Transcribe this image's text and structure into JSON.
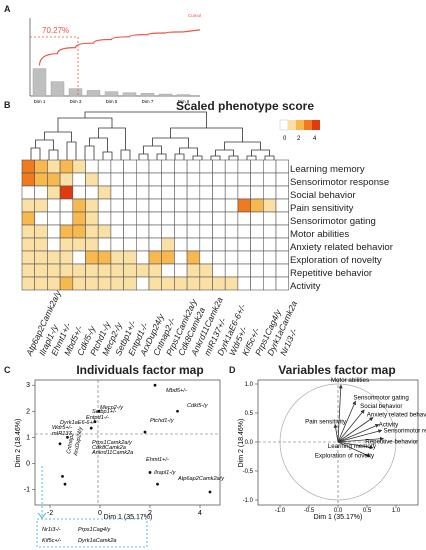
{
  "panelA": {
    "letter": "A",
    "annotation": "70.27%",
    "curve_label": "Cumul",
    "chart_data": {
      "type": "bar",
      "categories": [
        "Dim 1",
        "",
        "Dim 3",
        "",
        "Dim 5",
        "",
        "Dim 7",
        "",
        "Dim 9"
      ],
      "values": [
        35.17,
        18.46,
        9.5,
        7.14,
        5.6,
        4.2,
        3.4,
        2.5,
        1.8
      ],
      "xlabel": "",
      "ylabel": ""
    }
  },
  "panelB": {
    "letter": "B",
    "title": "Scaled phenotype score",
    "legend": {
      "ticks": [
        "0",
        "2",
        "4"
      ],
      "colors": [
        "#ffffff",
        "#fbe0a6",
        "#f6b84f",
        "#ef7a1f",
        "#e03b10"
      ]
    },
    "traits": [
      "Learning memory",
      "Sensorimotor response",
      "Social behavior",
      "Pain sensitivity",
      "Sensorimotor gating",
      "Motor abilities",
      "Anxiety related behavior",
      "Exploration of novelty",
      "Repetitive behavior",
      "Activity"
    ],
    "genes": [
      "Atp6ap2Camk2a/y",
      "Ilrapl1-/y",
      "Ehmt1+/-",
      "Mbd5+/-",
      "Cdkl5-/y",
      "Ptchd1-/y",
      "Mecp2-/y",
      "Setbp1+/-",
      "Entpd1-/-",
      "ArxDup24/y",
      "Cntnap2-/-",
      "Prps1Camk2a/y",
      "Cdk8Camk2a",
      "Ankrd11Camk2a",
      "mIR137+/-",
      "Dyrk1aE6-6+/-",
      "Wdr5+/-",
      "Kif5c+/-",
      "Prps1Cag4/y",
      "Dyrk1aCamk2a",
      "Nr1i3-/-"
    ],
    "chart_data": {
      "type": "heatmap",
      "rows": [
        "Learning memory",
        "Sensorimotor response",
        "Social behavior",
        "Pain sensitivity",
        "Sensorimotor gating",
        "Motor abilities",
        "Anxiety related behavior",
        "Exploration of novelty",
        "Repetitive behavior",
        "Activity"
      ],
      "columns": [
        "Atp6ap2",
        "Ilrapl1",
        "Ehmt1",
        "Mbd5",
        "Cdkl5",
        "Ptchd1",
        "Mecp2",
        "Setbp1",
        "Entpd1",
        "Arx",
        "Cntnap2",
        "Prps1Camk2a",
        "Cdk8",
        "Ankrd11",
        "mIR137",
        "Dyrk1aE6",
        "Wdr5",
        "Kif5c",
        "Prps1Cag",
        "Dyrk1aCamk2a",
        "Nr1i3"
      ],
      "values": [
        [
          3,
          2,
          1,
          2,
          1,
          0,
          0,
          0,
          0,
          0,
          0,
          0,
          0,
          0,
          0,
          0,
          0,
          0,
          0,
          0,
          0
        ],
        [
          3,
          2,
          2,
          1,
          0,
          1,
          0,
          0,
          0,
          0,
          0,
          0,
          0,
          0,
          0,
          0,
          0,
          0,
          0,
          0,
          0
        ],
        [
          0,
          0,
          1,
          4,
          0,
          0,
          1,
          0,
          0,
          0,
          0,
          0,
          0,
          0,
          0,
          0,
          0,
          0,
          0,
          0,
          0
        ],
        [
          1,
          1,
          0,
          0,
          2,
          1,
          0,
          0,
          0,
          0,
          0,
          0,
          0,
          0,
          0,
          0,
          0,
          3,
          2,
          1,
          0
        ],
        [
          2,
          0,
          0,
          0,
          2,
          1,
          0,
          0,
          0,
          0,
          0,
          0,
          0,
          0,
          0,
          0,
          0,
          0,
          0,
          0,
          0
        ],
        [
          1,
          1,
          0,
          2,
          2,
          1,
          1,
          0,
          0,
          0,
          0,
          0,
          0,
          0,
          0,
          0,
          0,
          0,
          0,
          0,
          0
        ],
        [
          1,
          1,
          0,
          1,
          1,
          1,
          0,
          0,
          0,
          0,
          0,
          1,
          0,
          0,
          0,
          0,
          0,
          0,
          0,
          0,
          0
        ],
        [
          1,
          1,
          1,
          1,
          0,
          2,
          2,
          1,
          1,
          0,
          2,
          2,
          0,
          2,
          0,
          0,
          0,
          0,
          0,
          0,
          0
        ],
        [
          1,
          1,
          1,
          1,
          1,
          1,
          1,
          1,
          1,
          1,
          1,
          0,
          0,
          1,
          1,
          0,
          0,
          0,
          0,
          0,
          0
        ],
        [
          1,
          1,
          1,
          2,
          1,
          1,
          1,
          1,
          1,
          0,
          1,
          1,
          1,
          1,
          1,
          1,
          1,
          0,
          0,
          0,
          0
        ]
      ]
    }
  },
  "panelC": {
    "letter": "C",
    "title": "Individuals factor map",
    "xlabel": "Dim 1 (35.17%)",
    "ylabel": "Dim 2 (18.46%)",
    "xticks": [
      "-2",
      "0",
      "2",
      "4"
    ],
    "yticks": [
      "-1",
      "0",
      "1",
      "2",
      "3"
    ],
    "chart_data": {
      "type": "scatter",
      "xlim": [
        -2.6,
        4.8
      ],
      "ylim": [
        -1.6,
        3.2
      ],
      "points": [
        {
          "label": "Mbd5+/-",
          "x": 2.2,
          "y": 3.0
        },
        {
          "label": "Cdkl5-/y",
          "x": 3.1,
          "y": 2.0
        },
        {
          "label": "Mecp2-/y",
          "x": -0.05,
          "y": 2.0
        },
        {
          "label": "Setbp1+/-",
          "x": -0.2,
          "y": 1.6
        },
        {
          "label": "Entpd1-/-",
          "x": -0.35,
          "y": 1.35
        },
        {
          "label": "Ptchd1-/y",
          "x": 1.8,
          "y": 1.2
        },
        {
          "label": "Wdr5+/-",
          "x": -1.3,
          "y": 1.0
        },
        {
          "label": "mIR137",
          "x": -1.6,
          "y": 0.75
        },
        {
          "label": "Ehmt1+/-",
          "x": 2.0,
          "y": -0.35
        },
        {
          "label": "Ilrapl1-/y",
          "x": 2.3,
          "y": -0.8
        },
        {
          "label": "Atp6ap2Camk2a/y",
          "x": 4.4,
          "y": -1.1
        },
        {
          "label": "Cntnap2",
          "x": -1.5,
          "y": -0.5
        },
        {
          "label": "ArxDup24/y",
          "x": -1.4,
          "y": -0.8
        }
      ]
    },
    "labels": {
      "mbd5": "Mbd5+/-",
      "cdkl5": "Cdkl5-/y",
      "mecp2": "Mecp2-/y",
      "setbp1": "Setbp1+/-",
      "entpd1": "Entpd1-/-",
      "ptchd1": "Ptchd1-/y",
      "wdr5": "Wdr5+/-",
      "dyrk1a": "Dyrk1aE6-6+/-",
      "mir137": "mIR137",
      "cntnap2": "Cntnap2",
      "arx": "ArxDup24/y",
      "prps1": "Prps1Camk2a/y",
      "cdk8": "Cdk8Camk2a",
      "ankrd11": "Ankrd11Camk2a",
      "ehmt1": "Ehmt1+/-",
      "ilrapl1": "Ilrapl1-/y",
      "atp6ap2": "Atp6ap2Camk2a/y"
    },
    "inset": [
      "Nr1i3-/-",
      "Prps1Cag4/y",
      "Kif5c+/-",
      "Dyrk1aCamk2a"
    ]
  },
  "panelD": {
    "letter": "D",
    "title": "Variables factor map",
    "xlabel": "Dim 1 (35.17%)",
    "ylabel": "Dim 2 (18.46%)",
    "xticks": [
      "-1.0",
      "-0.5",
      "0.0",
      "0.5",
      "1.0"
    ],
    "yticks": [
      "-1.0",
      "-0.5",
      "0.0",
      "0.5",
      "1.0"
    ],
    "chart_data": {
      "type": "scatter",
      "xlim": [
        -1.1,
        1.1
      ],
      "ylim": [
        -1.1,
        1.1
      ],
      "vectors": [
        {
          "label": "Motor abilities",
          "x": 0.05,
          "y": 0.98
        },
        {
          "label": "Sensorimotor gating",
          "x": 0.3,
          "y": 0.7
        },
        {
          "label": "Social behavior",
          "x": 0.45,
          "y": 0.55
        },
        {
          "label": "Anxiety related behavior",
          "x": 0.6,
          "y": 0.42
        },
        {
          "label": "Activity",
          "x": 0.7,
          "y": 0.3
        },
        {
          "label": "Sensorimotor response",
          "x": 0.75,
          "y": 0.2
        },
        {
          "label": "Repetitive behavior",
          "x": 0.78,
          "y": 0.06
        },
        {
          "label": "Pain sensitivity",
          "x": -0.05,
          "y": 0.3
        },
        {
          "label": "Learning memory",
          "x": 0.6,
          "y": -0.1
        },
        {
          "label": "Exploration of novelty",
          "x": 0.55,
          "y": -0.25
        }
      ]
    }
  }
}
